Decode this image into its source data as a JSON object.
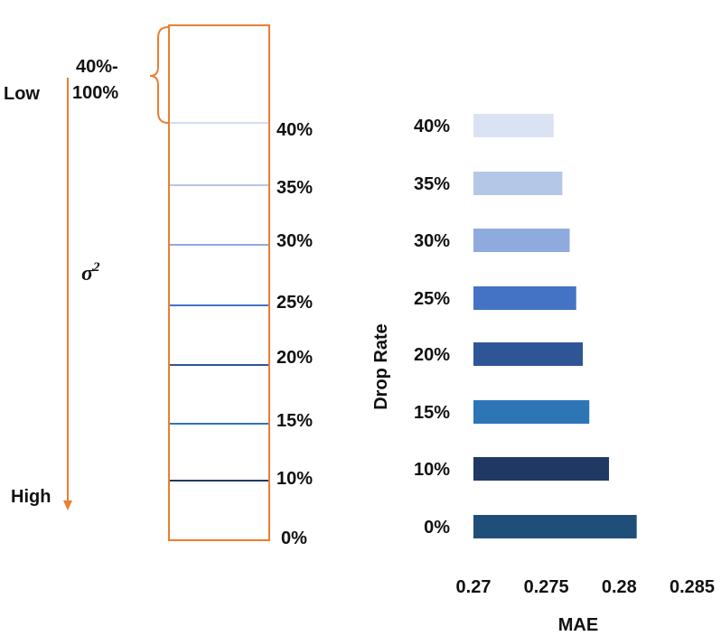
{
  "diagram": {
    "variance_low_label": "Low",
    "variance_high_label": "High",
    "variance_symbol": "σ",
    "variance_exponent": "2",
    "bracket_label_line1": "40%-",
    "bracket_label_line2": "100%",
    "levels": [
      {
        "label": "40%",
        "color": "#d5dff2"
      },
      {
        "label": "35%",
        "color": "#b4c7e7"
      },
      {
        "label": "30%",
        "color": "#8faadc"
      },
      {
        "label": "25%",
        "color": "#4472c4"
      },
      {
        "label": "20%",
        "color": "#2f5597"
      },
      {
        "label": "15%",
        "color": "#2e75b6"
      },
      {
        "label": "10%",
        "color": "#1f3864"
      },
      {
        "label": "0%",
        "color": "#1f4e79"
      }
    ],
    "outline_color": "#ed7d31"
  },
  "chart_data": {
    "type": "bar",
    "orientation": "horizontal",
    "categories": [
      "40%",
      "35%",
      "30%",
      "25%",
      "20%",
      "15%",
      "10%",
      "0%"
    ],
    "values": [
      0.2755,
      0.2761,
      0.2766,
      0.27705,
      0.2775,
      0.27795,
      0.2793,
      0.2812
    ],
    "colors": [
      "#dae3f3",
      "#b4c7e7",
      "#8faadc",
      "#4472c4",
      "#2f5597",
      "#2e75b6",
      "#203864",
      "#1f4e79"
    ],
    "xlabel": "MAE",
    "ylabel": "Drop Rate",
    "xlim": [
      0.27,
      0.285
    ],
    "xticks": [
      "0.27",
      "0.275",
      "0.28",
      "0.285"
    ],
    "grid": false,
    "legend": "none"
  }
}
